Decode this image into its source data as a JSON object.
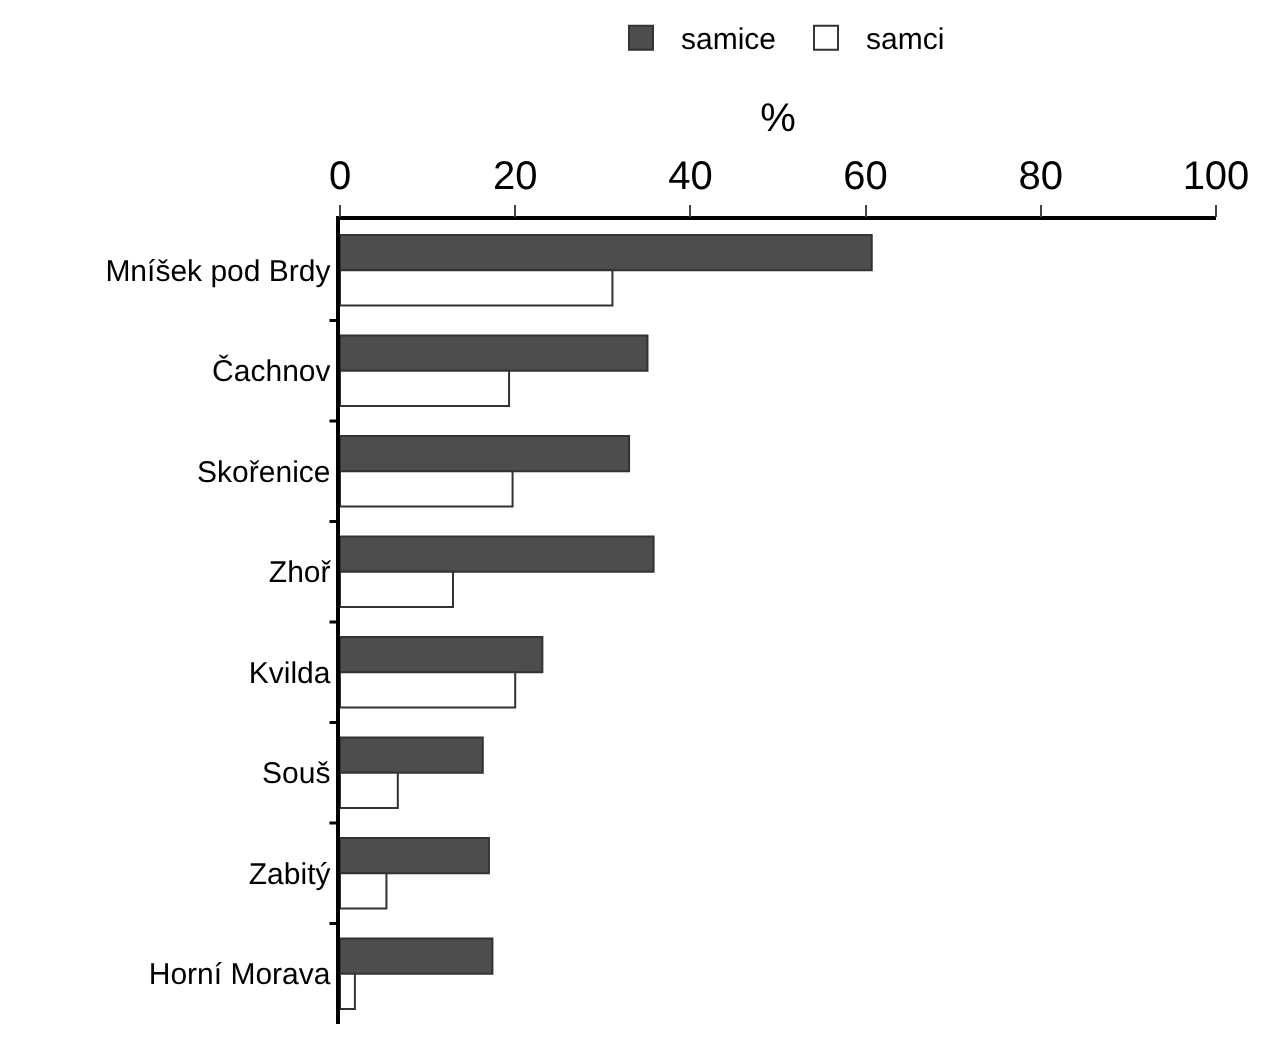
{
  "chart_data": {
    "type": "bar",
    "orientation": "horizontal",
    "xlabel": "%",
    "categories": [
      "Mníšek pod Brdy",
      "Čachnov",
      "Skořenice",
      "Zhoř",
      "Kvilda",
      "Souš",
      "Zabitý",
      "Horní Morava"
    ],
    "series": [
      {
        "name": "samice",
        "color": "#4d4d4d",
        "values": [
          60.7,
          35.1,
          33.0,
          35.8,
          23.1,
          16.3,
          17.0,
          17.4
        ]
      },
      {
        "name": "samci",
        "color": "#ffffff",
        "values": [
          31.1,
          19.3,
          19.7,
          12.9,
          20.0,
          6.6,
          5.3,
          1.7
        ]
      }
    ],
    "xlim": [
      0,
      100
    ],
    "xticks": [
      0,
      20,
      40,
      60,
      80,
      100
    ],
    "legend": "top"
  }
}
